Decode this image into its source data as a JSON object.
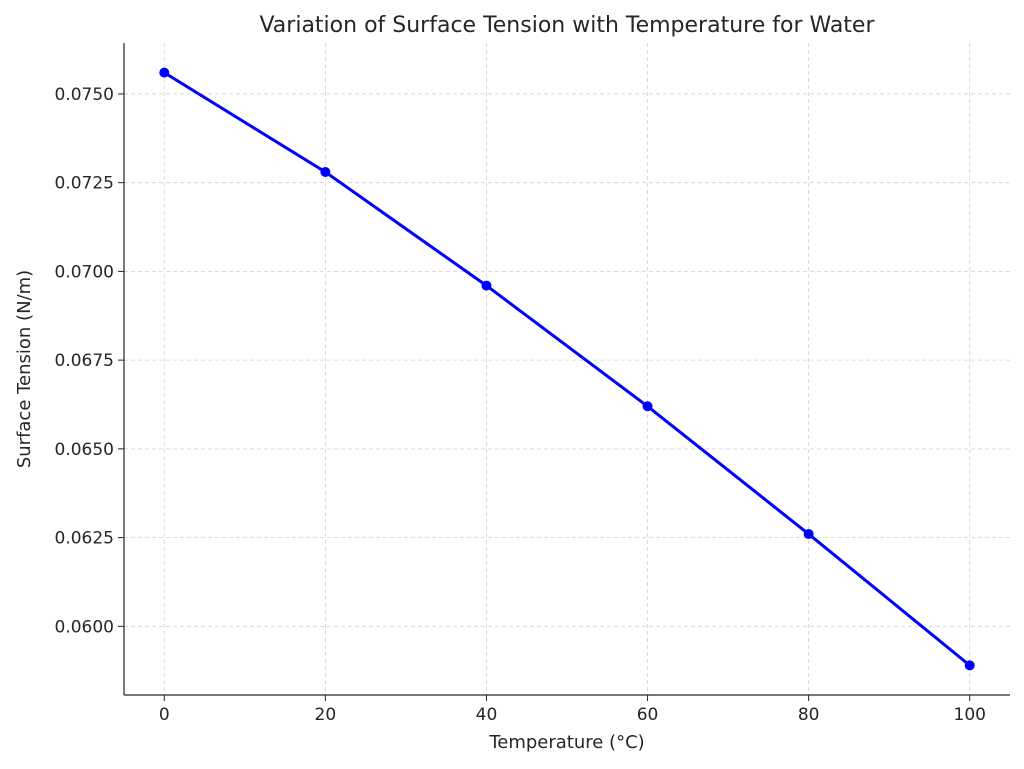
{
  "chart_data": {
    "type": "line",
    "title": "Variation of Surface Tension with Temperature for Water",
    "xlabel": "Temperature (°C)",
    "ylabel": "Surface Tension (N/m)",
    "x": [
      0,
      20,
      40,
      60,
      80,
      100
    ],
    "series": [
      {
        "values": [
          0.0756,
          0.0728,
          0.0696,
          0.0662,
          0.0626,
          0.0589
        ],
        "color": "#0000ff",
        "marker": "circle"
      }
    ],
    "xlim": [
      -5,
      105
    ],
    "ylim": [
      0.058065,
      0.076435
    ],
    "xticks": [
      "0",
      "20",
      "40",
      "60",
      "80",
      "100"
    ],
    "yticks": [
      "0.0600",
      "0.0625",
      "0.0650",
      "0.0675",
      "0.0700",
      "0.0725",
      "0.0750"
    ],
    "grid": true,
    "legend": "none"
  }
}
